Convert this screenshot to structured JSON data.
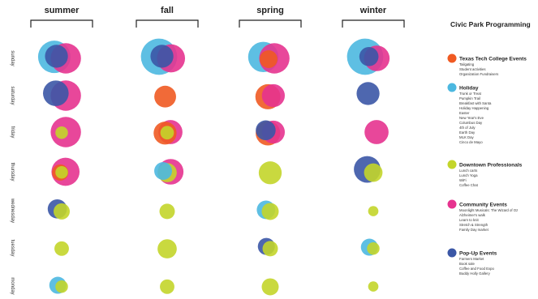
{
  "chart_data": {
    "type": "scatter",
    "title": "Civic Park Programming",
    "seasons": [
      "summer",
      "fall",
      "spring",
      "winter"
    ],
    "days": [
      "sunday",
      "saturday",
      "friday",
      "thursday",
      "wednesday",
      "tuesday",
      "monday"
    ],
    "categories": [
      {
        "key": "ttu",
        "name": "Texas Tech College Events",
        "color": "#f05a22",
        "items": [
          "Tailgating",
          "Student activities",
          "Organization Fundraisers"
        ]
      },
      {
        "key": "holiday",
        "name": "Holiday",
        "color": "#4cb8e0",
        "items": [
          "Trunk or Treat",
          "Pumpkin Trail",
          "Breakfast with Santa",
          "Holiday Happening",
          "Easter",
          "New Year's Eve",
          "Columbus Day",
          "4th of July",
          "Earth Day",
          "MLK Day",
          "Cinco de Mayo"
        ]
      },
      {
        "key": "downtown",
        "name": "Downtown Professionals",
        "color": "#c3d52a",
        "items": [
          "Lunch carts",
          "Lunch Yoga",
          "WiFi",
          "Coffee Chat"
        ]
      },
      {
        "key": "community",
        "name": "Community Events",
        "color": "#e6338f",
        "items": [
          "Moonlight Musicals: The Wizard of Oz",
          "Alzheimer's walk",
          "Learn to knit",
          "Stretch & Strength",
          "Family Day market"
        ]
      },
      {
        "key": "popup",
        "name": "Pop-Up Events",
        "color": "#3b57a6",
        "items": [
          "Farmers Market",
          "Book sale",
          "Coffee and Food Expo",
          "Buddy Holly Gallery"
        ]
      }
    ],
    "bubbles": [
      {
        "season": "summer",
        "day": "sunday",
        "category": "holiday",
        "size": 4
      },
      {
        "season": "summer",
        "day": "sunday",
        "category": "community",
        "size": 3.5
      },
      {
        "season": "summer",
        "day": "sunday",
        "category": "popup",
        "size": 2
      },
      {
        "season": "summer",
        "day": "saturday",
        "category": "popup",
        "size": 2.5
      },
      {
        "season": "summer",
        "day": "saturday",
        "category": "community",
        "size": 3.5
      },
      {
        "season": "summer",
        "day": "friday",
        "category": "community",
        "size": 3.5
      },
      {
        "season": "summer",
        "day": "friday",
        "category": "downtown",
        "size": 0.6
      },
      {
        "season": "summer",
        "day": "thursday",
        "category": "community",
        "size": 3
      },
      {
        "season": "summer",
        "day": "thursday",
        "category": "ttu",
        "size": 1
      },
      {
        "season": "summer",
        "day": "thursday",
        "category": "downtown",
        "size": 0.6
      },
      {
        "season": "summer",
        "day": "wednesday",
        "category": "popup",
        "size": 1.4
      },
      {
        "season": "summer",
        "day": "wednesday",
        "category": "downtown",
        "size": 1
      },
      {
        "season": "summer",
        "day": "tuesday",
        "category": "downtown",
        "size": 0.8
      },
      {
        "season": "summer",
        "day": "monday",
        "category": "holiday",
        "size": 1.1
      },
      {
        "season": "summer",
        "day": "monday",
        "category": "downtown",
        "size": 0.6
      },
      {
        "season": "fall",
        "day": "sunday",
        "category": "holiday",
        "size": 5
      },
      {
        "season": "fall",
        "day": "sunday",
        "category": "community",
        "size": 3
      },
      {
        "season": "fall",
        "day": "sunday",
        "category": "popup",
        "size": 2
      },
      {
        "season": "fall",
        "day": "saturday",
        "category": "ttu",
        "size": 1.8
      },
      {
        "season": "fall",
        "day": "friday",
        "category": "community",
        "size": 2.2
      },
      {
        "season": "fall",
        "day": "friday",
        "category": "ttu",
        "size": 2
      },
      {
        "season": "fall",
        "day": "friday",
        "category": "downtown",
        "size": 0.7
      },
      {
        "season": "fall",
        "day": "thursday",
        "category": "community",
        "size": 2.5
      },
      {
        "season": "fall",
        "day": "thursday",
        "category": "holiday",
        "size": 1.2
      },
      {
        "season": "fall",
        "day": "thursday",
        "category": "downtown",
        "size": 1.4
      },
      {
        "season": "fall",
        "day": "wednesday",
        "category": "downtown",
        "size": 0.9
      },
      {
        "season": "fall",
        "day": "tuesday",
        "category": "downtown",
        "size": 1.4
      },
      {
        "season": "fall",
        "day": "monday",
        "category": "downtown",
        "size": 0.8
      },
      {
        "season": "spring",
        "day": "sunday",
        "category": "holiday",
        "size": 3.5
      },
      {
        "season": "spring",
        "day": "sunday",
        "category": "community",
        "size": 3.5
      },
      {
        "season": "spring",
        "day": "sunday",
        "category": "ttu",
        "size": 1.2
      },
      {
        "season": "spring",
        "day": "saturday",
        "category": "ttu",
        "size": 2.4
      },
      {
        "season": "spring",
        "day": "saturday",
        "category": "community",
        "size": 2
      },
      {
        "season": "spring",
        "day": "friday",
        "category": "ttu",
        "size": 2.3
      },
      {
        "season": "spring",
        "day": "friday",
        "category": "popup",
        "size": 1.5
      },
      {
        "season": "spring",
        "day": "friday",
        "category": "community",
        "size": 2
      },
      {
        "season": "spring",
        "day": "thursday",
        "category": "downtown",
        "size": 2
      },
      {
        "season": "spring",
        "day": "wednesday",
        "category": "holiday",
        "size": 1.3
      },
      {
        "season": "spring",
        "day": "wednesday",
        "category": "downtown",
        "size": 1.1
      },
      {
        "season": "spring",
        "day": "tuesday",
        "category": "popup",
        "size": 1.1
      },
      {
        "season": "spring",
        "day": "tuesday",
        "category": "downtown",
        "size": 0.9
      },
      {
        "season": "spring",
        "day": "monday",
        "category": "downtown",
        "size": 1.1
      },
      {
        "season": "winter",
        "day": "sunday",
        "category": "holiday",
        "size": 5
      },
      {
        "season": "winter",
        "day": "sunday",
        "category": "community",
        "size": 2.5
      },
      {
        "season": "winter",
        "day": "sunday",
        "category": "popup",
        "size": 1.4
      },
      {
        "season": "winter",
        "day": "saturday",
        "category": "popup",
        "size": 2
      },
      {
        "season": "winter",
        "day": "friday",
        "category": "community",
        "size": 2.2
      },
      {
        "season": "winter",
        "day": "thursday",
        "category": "popup",
        "size": 2.7
      },
      {
        "season": "winter",
        "day": "thursday",
        "category": "downtown",
        "size": 1.3
      },
      {
        "season": "winter",
        "day": "wednesday",
        "category": "downtown",
        "size": 0.4
      },
      {
        "season": "winter",
        "day": "tuesday",
        "category": "holiday",
        "size": 1.1
      },
      {
        "season": "winter",
        "day": "tuesday",
        "category": "downtown",
        "size": 0.6
      },
      {
        "season": "winter",
        "day": "monday",
        "category": "downtown",
        "size": 0.4
      }
    ]
  }
}
